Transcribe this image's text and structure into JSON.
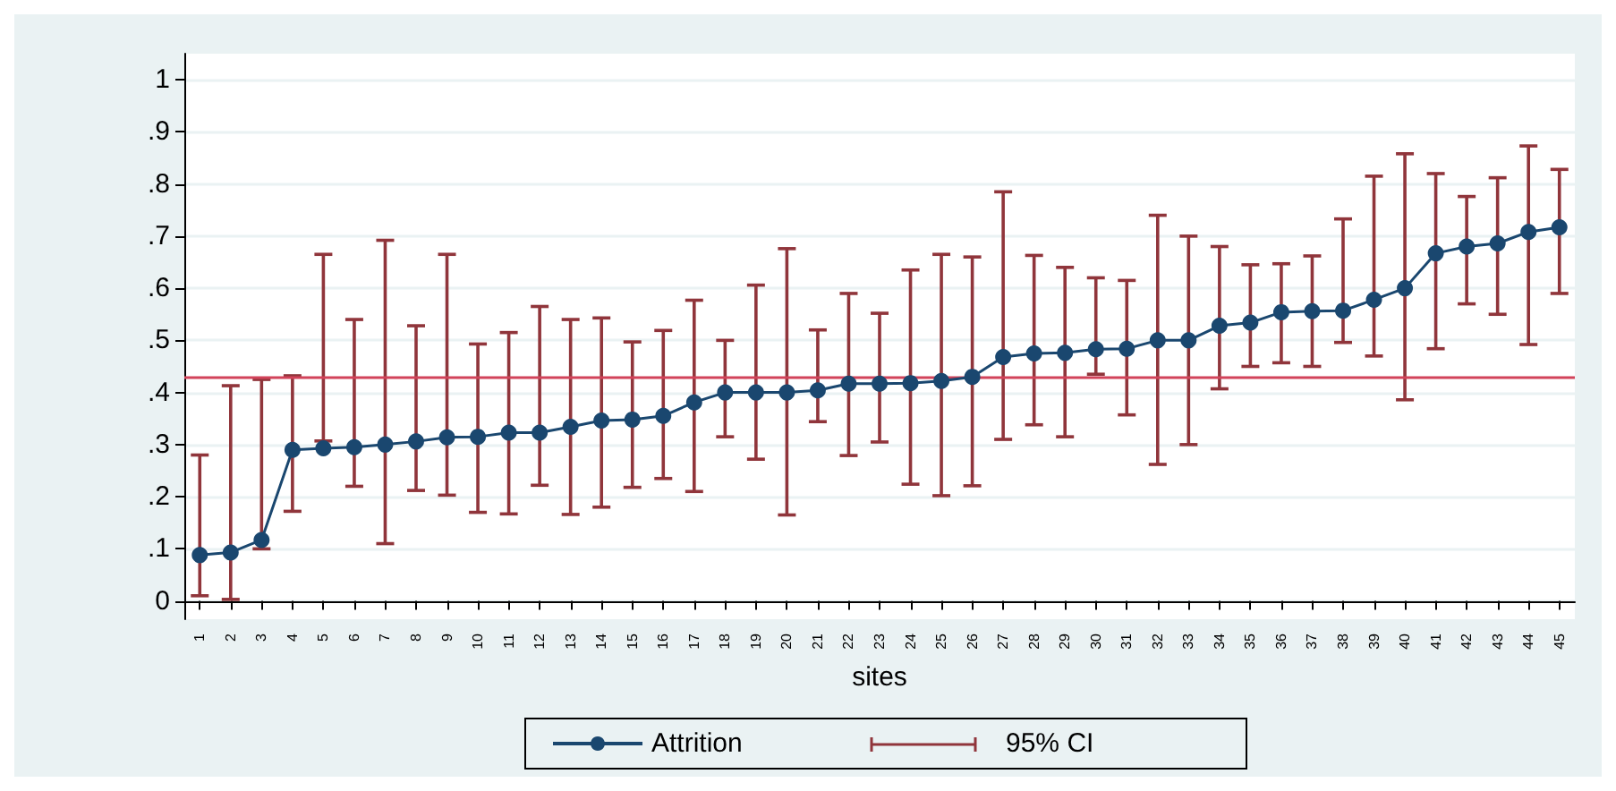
{
  "chart_data": {
    "type": "line",
    "xlabel": "sites",
    "categories": [
      "1",
      "2",
      "3",
      "4",
      "5",
      "6",
      "7",
      "8",
      "9",
      "10",
      "11",
      "12",
      "13",
      "14",
      "15",
      "16",
      "17",
      "18",
      "19",
      "20",
      "21",
      "22",
      "23",
      "24",
      "25",
      "26",
      "27",
      "28",
      "29",
      "30",
      "31",
      "32",
      "33",
      "34",
      "35",
      "36",
      "37",
      "38",
      "39",
      "40",
      "41",
      "42",
      "43",
      "44",
      "45"
    ],
    "series": [
      {
        "name": "Attrition",
        "color": "#1a476f",
        "values": [
          0.088,
          0.093,
          0.117,
          0.29,
          0.293,
          0.295,
          0.3,
          0.306,
          0.314,
          0.315,
          0.323,
          0.323,
          0.334,
          0.346,
          0.348,
          0.355,
          0.381,
          0.4,
          0.4,
          0.4,
          0.404,
          0.417,
          0.417,
          0.418,
          0.422,
          0.43,
          0.468,
          0.475,
          0.476,
          0.483,
          0.484,
          0.5,
          0.5,
          0.528,
          0.534,
          0.554,
          0.556,
          0.557,
          0.578,
          0.6,
          0.667,
          0.68,
          0.686,
          0.708,
          0.717
        ],
        "errors": [
          [
            0.01,
            0.28
          ],
          [
            0.003,
            0.413
          ],
          [
            0.1,
            0.425
          ],
          [
            0.172,
            0.432
          ],
          [
            0.307,
            0.665
          ],
          [
            0.22,
            0.54
          ],
          [
            0.11,
            0.692
          ],
          [
            0.212,
            0.528
          ],
          [
            0.203,
            0.665
          ],
          [
            0.17,
            0.493
          ],
          [
            0.167,
            0.515
          ],
          [
            0.222,
            0.565
          ],
          [
            0.166,
            0.54
          ],
          [
            0.18,
            0.543
          ],
          [
            0.218,
            0.497
          ],
          [
            0.235,
            0.519
          ],
          [
            0.21,
            0.577
          ],
          [
            0.315,
            0.5
          ],
          [
            0.272,
            0.606
          ],
          [
            0.165,
            0.676
          ],
          [
            0.344,
            0.52
          ],
          [
            0.279,
            0.59
          ],
          [
            0.305,
            0.552
          ],
          [
            0.224,
            0.635
          ],
          [
            0.202,
            0.665
          ],
          [
            0.221,
            0.66
          ],
          [
            0.31,
            0.785
          ],
          [
            0.338,
            0.663
          ],
          [
            0.315,
            0.64
          ],
          [
            0.435,
            0.62
          ],
          [
            0.357,
            0.615
          ],
          [
            0.262,
            0.74
          ],
          [
            0.3,
            0.7
          ],
          [
            0.407,
            0.68
          ],
          [
            0.45,
            0.645
          ],
          [
            0.457,
            0.647
          ],
          [
            0.45,
            0.662
          ],
          [
            0.496,
            0.733
          ],
          [
            0.47,
            0.815
          ],
          [
            0.386,
            0.858
          ],
          [
            0.484,
            0.82
          ],
          [
            0.57,
            0.776
          ],
          [
            0.55,
            0.812
          ],
          [
            0.492,
            0.873
          ],
          [
            0.59,
            0.828
          ]
        ]
      }
    ],
    "annotations": [
      "95% CI"
    ],
    "ref_lines": [
      {
        "axis": "y",
        "value": 0.43,
        "color": "#d2435a"
      }
    ],
    "ylim": [
      -0.035,
      1.05
    ],
    "yticks": [
      0,
      {
        "value": 0.1,
        "label": ".1"
      },
      {
        "value": 0.2,
        "label": ".2"
      },
      {
        "value": 0.3,
        "label": ".3"
      },
      {
        "value": 0.4,
        "label": ".4"
      },
      {
        "value": 0.5,
        "label": ".5"
      },
      {
        "value": 0.6,
        "label": ".6"
      },
      {
        "value": 0.7,
        "label": ".7"
      },
      {
        "value": 0.8,
        "label": ".8"
      },
      {
        "value": 0.9,
        "label": ".9"
      },
      1
    ],
    "grid": "y",
    "legend": "bottom",
    "marker": "circle",
    "line_style": "solid"
  }
}
